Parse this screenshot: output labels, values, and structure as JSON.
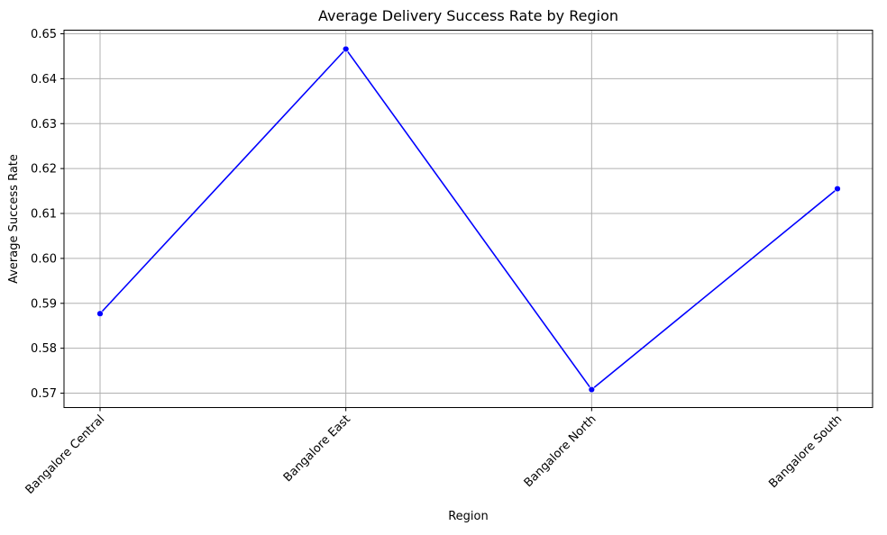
{
  "chart_data": {
    "type": "line",
    "title": "Average Delivery Success Rate by Region",
    "xlabel": "Region",
    "ylabel": "Average Success Rate",
    "categories": [
      "Bangalore Central",
      "Bangalore East",
      "Bangalore North",
      "Bangalore South"
    ],
    "series": [
      {
        "values": [
          0.5877,
          0.6466,
          0.5708,
          0.6155
        ],
        "color": "#0000ff",
        "marker": "circle"
      }
    ],
    "ylim": [
      0.5668,
      0.6508
    ],
    "yticks": [
      0.57,
      0.58,
      0.59,
      0.6,
      0.61,
      0.62,
      0.63,
      0.64,
      0.65
    ],
    "ytick_labels": [
      "0.57",
      "0.58",
      "0.59",
      "0.60",
      "0.61",
      "0.62",
      "0.63",
      "0.64",
      "0.65"
    ],
    "grid": true,
    "xtick_rotation_deg": 45
  }
}
